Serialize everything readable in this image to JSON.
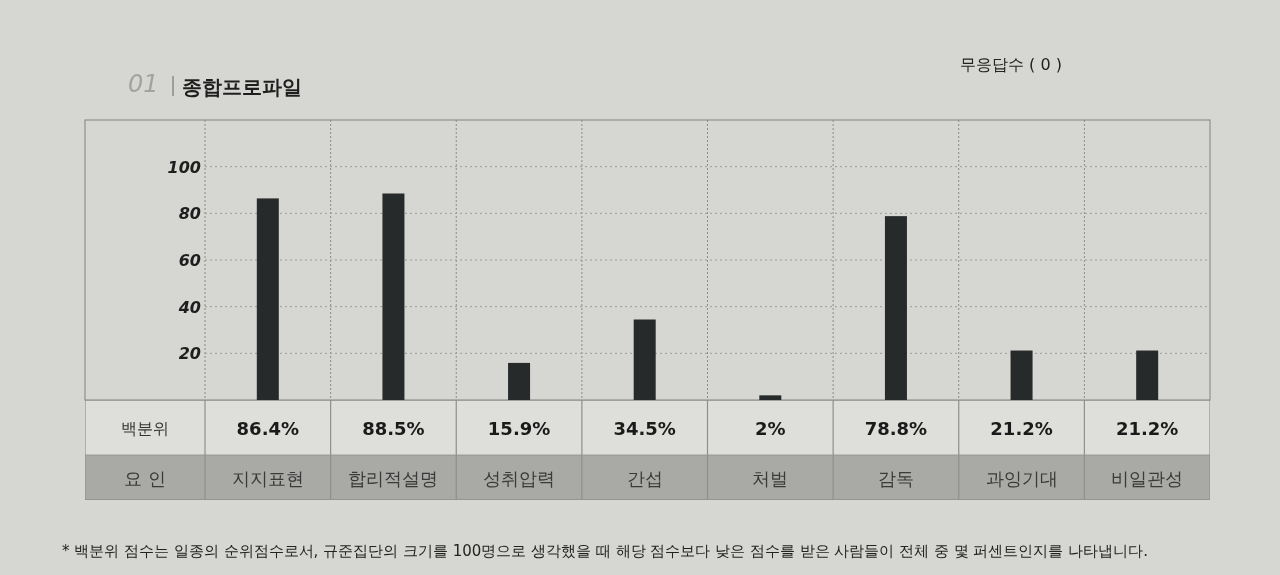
{
  "chart_data": {
    "type": "bar",
    "title": "종합프로파일",
    "xlabel": "요 인",
    "ylabel": "백분위",
    "categories": [
      "지지표현",
      "합리적설명",
      "성취압력",
      "간섭",
      "처벌",
      "감독",
      "과잉기대",
      "비일관성"
    ],
    "values": [
      86.4,
      88.5,
      15.9,
      34.5,
      2,
      78.8,
      21.2,
      21.2
    ],
    "color": "#262a2a",
    "value_labels": [
      "86.4%",
      "88.5%",
      "15.9%",
      "34.5%",
      "2%",
      "78.8%",
      "21.2%",
      "21.2%"
    ],
    "ylim": [
      0,
      120
    ],
    "yticks": [
      20,
      40,
      60,
      80,
      100
    ],
    "grid": "y",
    "annotations": [
      "01",
      "무응답수 ( 0 )",
      "* 백분위 점수는 일종의 순위점수로서, 규준집단의 크기를 100명으로 생각했을 때 해당 점수보다 낮은 점수를 받은 사람들이 전체 중 몇 퍼센트인지를 나타냅니다."
    ]
  }
}
